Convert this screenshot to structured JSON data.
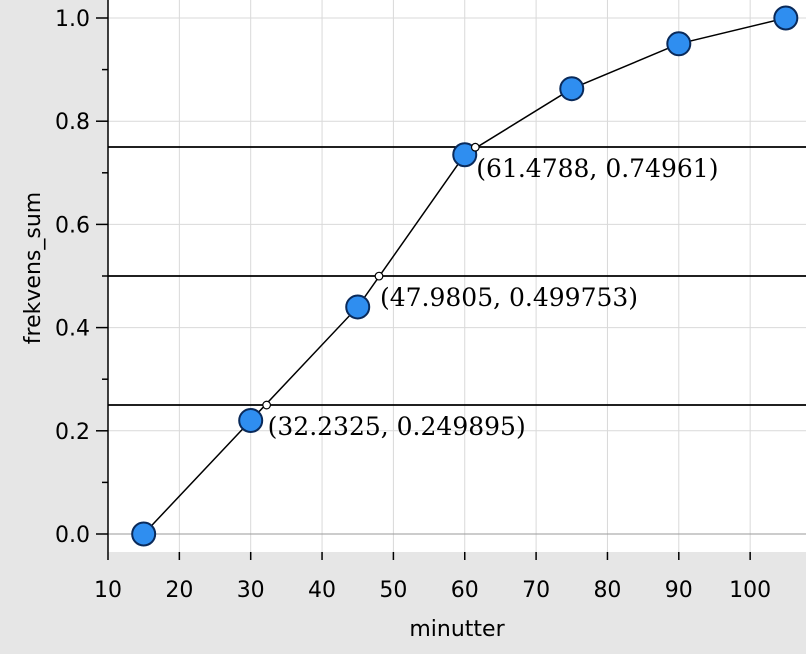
{
  "chart_data": {
    "type": "line",
    "xlabel": "minutter",
    "ylabel": "frekvens_sum",
    "xlim": [
      10,
      105
    ],
    "ylim": [
      0,
      1.0
    ],
    "x_ticks": [
      "10",
      "20",
      "30",
      "40",
      "50",
      "60",
      "70",
      "80",
      "90",
      "100"
    ],
    "y_ticks": [
      "0.0",
      "0.2",
      "0.4",
      "0.6",
      "0.8",
      "1.0"
    ],
    "grid": true,
    "series": [
      {
        "x": [
          15,
          30,
          45,
          60,
          75,
          90,
          105
        ],
        "y": [
          0.0,
          0.22,
          0.44,
          0.735,
          0.863,
          0.95,
          1.0
        ]
      }
    ],
    "horizontal_lines": [
      0.25,
      0.5,
      0.75
    ],
    "intersection_points": [
      {
        "x": 32.2325,
        "y": 0.249895,
        "label": "(32.2325, 0.249895)"
      },
      {
        "x": 47.9805,
        "y": 0.499753,
        "label": "(47.9805, 0.499753)"
      },
      {
        "x": 61.4788,
        "y": 0.74961,
        "label": "(61.4788, 0.74961)"
      }
    ],
    "colors": {
      "marker_fill": "#2f8ef0",
      "marker_stroke": "#0a2a5a",
      "line": "#000000",
      "grid": "#d9d9d9",
      "plot_background": "#ffffff",
      "frame_background": "#e6e6e6"
    }
  }
}
